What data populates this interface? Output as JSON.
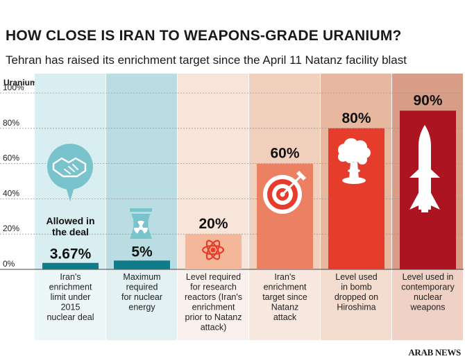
{
  "title": "HOW CLOSE IS IRAN TO WEAPONS-GRADE URANIUM?",
  "subtitle": "Tehran has raised its enrichment target since the April 11 Natanz facility blast",
  "source": "ARAB NEWS",
  "chart_data": {
    "type": "bar",
    "ylabel": "Uranium purity",
    "ylim": [
      0,
      100
    ],
    "yticks": [
      "0%",
      "20%",
      "40%",
      "60%",
      "80%",
      "100%"
    ],
    "grid": true,
    "categories": [
      "Iran's enrichment limit under 2015 nuclear deal",
      "Maximum required for nuclear energy",
      "Level required for research reactors (Iran's enrichment prior to Natanz attack)",
      "Iran's enrichment target since Natanz attack",
      "Level used in bomb dropped on Hiroshima",
      "Level used in contemporary nuclear weapons"
    ],
    "category_lines": [
      [
        "Iran's",
        "enrichment",
        "limit under",
        "2015",
        "nuclear deal"
      ],
      [
        "Maximum",
        "required",
        "for nuclear",
        "energy"
      ],
      [
        "Level required",
        "for research",
        "reactors (Iran's",
        "enrichment",
        "prior to Natanz",
        "attack)"
      ],
      [
        "Iran's",
        "enrichment",
        "target since",
        "Natanz",
        "attack"
      ],
      [
        "Level used",
        "in bomb",
        "dropped on",
        "Hiroshima"
      ],
      [
        "Level used in",
        "contemporary",
        "nuclear",
        "weapons"
      ]
    ],
    "values": [
      3.67,
      5,
      20,
      60,
      80,
      90
    ],
    "value_labels": [
      "3.67%",
      "5%",
      "20%",
      "60%",
      "80%",
      "90%"
    ],
    "annotations": [
      {
        "category": 0,
        "text_lines": [
          "Allowed in",
          "the deal"
        ]
      }
    ],
    "icons": [
      "handshake-icon",
      "cooling-tower-icon",
      "atom-icon",
      "target-arrow-icon",
      "mushroom-cloud-icon",
      "missile-icon"
    ],
    "colors": {
      "bars": [
        "#0f7c8a",
        "#0f7c8a",
        "#f4b79a",
        "#ec8062",
        "#e63c2b",
        "#ad1421"
      ],
      "panels": [
        "#d9eef1",
        "#b9dde2",
        "#f7e5da",
        "#f0cfbc",
        "#e8b7a0",
        "#d79d87"
      ],
      "label_panels": [
        "#eef7f8",
        "#e3f1f3",
        "#fbf1ec",
        "#f8e8df",
        "#f4dccf",
        "#efd2c5"
      ],
      "icon_teal": "#79c3cc"
    }
  }
}
